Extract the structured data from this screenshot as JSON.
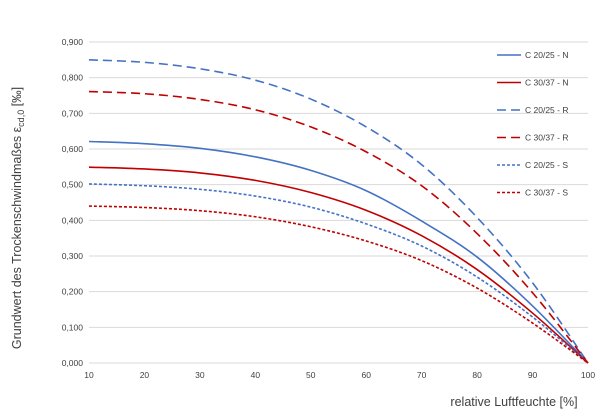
{
  "chart_data": {
    "type": "line",
    "xlabel": "relative Luftfeuchte [%]",
    "ylabel_main": "Grundwert des Trockenschwindmaßes ε",
    "ylabel_sub": "cd,0",
    "ylabel_unit": " [‰]",
    "xlim": [
      10,
      100
    ],
    "ylim": [
      0,
      0.9
    ],
    "x_ticks": [
      "10",
      "20",
      "30",
      "40",
      "50",
      "60",
      "70",
      "80",
      "90",
      "100"
    ],
    "y_ticks": [
      "0,000",
      "0,100",
      "0,200",
      "0,300",
      "0,400",
      "0,500",
      "0,600",
      "0,700",
      "0,800",
      "0,900"
    ],
    "grid": "horizontal",
    "legend_position": "right",
    "x": [
      10,
      20,
      30,
      40,
      50,
      60,
      70,
      80,
      90,
      100
    ],
    "series": [
      {
        "name": "C 20/25 - N",
        "color": "#4472c4",
        "dash": "solid",
        "values": [
          0.621,
          0.615,
          0.602,
          0.578,
          0.54,
          0.483,
          0.398,
          0.297,
          0.16,
          0.0
        ]
      },
      {
        "name": "C 30/37 - N",
        "color": "#c00000",
        "dash": "solid",
        "values": [
          0.549,
          0.544,
          0.533,
          0.512,
          0.478,
          0.428,
          0.357,
          0.262,
          0.14,
          0.0
        ]
      },
      {
        "name": "C 20/25 - R",
        "color": "#4472c4",
        "dash": "long",
        "values": [
          0.85,
          0.843,
          0.825,
          0.793,
          0.74,
          0.662,
          0.556,
          0.408,
          0.225,
          0.0
        ]
      },
      {
        "name": "C 30/37 - R",
        "color": "#c00000",
        "dash": "long",
        "values": [
          0.761,
          0.755,
          0.739,
          0.71,
          0.662,
          0.592,
          0.497,
          0.363,
          0.197,
          0.0
        ]
      },
      {
        "name": "C 20/25 - S",
        "color": "#4472c4",
        "dash": "short",
        "values": [
          0.502,
          0.497,
          0.487,
          0.468,
          0.437,
          0.39,
          0.328,
          0.241,
          0.129,
          0.0
        ]
      },
      {
        "name": "C 30/37 - S",
        "color": "#c00000",
        "dash": "short",
        "values": [
          0.44,
          0.436,
          0.427,
          0.41,
          0.382,
          0.342,
          0.287,
          0.21,
          0.112,
          0.0
        ]
      }
    ]
  }
}
